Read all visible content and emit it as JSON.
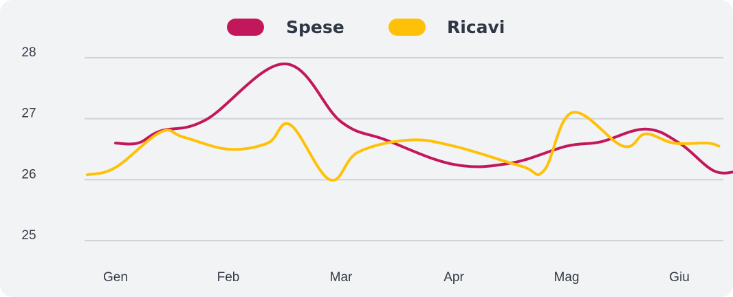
{
  "chart_data": {
    "type": "line",
    "categories": [
      "Gen",
      "Feb",
      "Mar",
      "Apr",
      "Mag",
      "Giu"
    ],
    "ylim": [
      25,
      28
    ],
    "yticks": [
      25,
      26,
      27,
      28
    ],
    "grid": true,
    "legend_position": "top-center",
    "series": [
      {
        "name": "Spese",
        "color": "#c2185b",
        "points": [
          [
            0.0,
            26.6
          ],
          [
            0.2,
            26.6
          ],
          [
            0.4,
            26.8
          ],
          [
            0.8,
            26.98
          ],
          [
            1.5,
            27.9
          ],
          [
            2.0,
            26.95
          ],
          [
            2.4,
            26.65
          ],
          [
            3.0,
            26.25
          ],
          [
            3.5,
            26.27
          ],
          [
            4.0,
            26.55
          ],
          [
            4.3,
            26.62
          ],
          [
            4.7,
            26.83
          ],
          [
            5.0,
            26.6
          ],
          [
            5.3,
            26.15
          ],
          [
            5.5,
            26.13
          ]
        ]
      },
      {
        "name": "Ricavi",
        "color": "#ffc107",
        "points": [
          [
            -0.25,
            26.08
          ],
          [
            0.0,
            26.2
          ],
          [
            0.4,
            26.78
          ],
          [
            0.6,
            26.7
          ],
          [
            1.0,
            26.5
          ],
          [
            1.35,
            26.6
          ],
          [
            1.55,
            26.9
          ],
          [
            1.9,
            26.0
          ],
          [
            2.15,
            26.45
          ],
          [
            2.6,
            26.65
          ],
          [
            3.0,
            26.55
          ],
          [
            3.6,
            26.22
          ],
          [
            3.8,
            26.15
          ],
          [
            4.05,
            27.1
          ],
          [
            4.5,
            26.55
          ],
          [
            4.7,
            26.75
          ],
          [
            4.95,
            26.6
          ],
          [
            5.25,
            26.6
          ],
          [
            5.35,
            26.55
          ]
        ]
      }
    ]
  }
}
